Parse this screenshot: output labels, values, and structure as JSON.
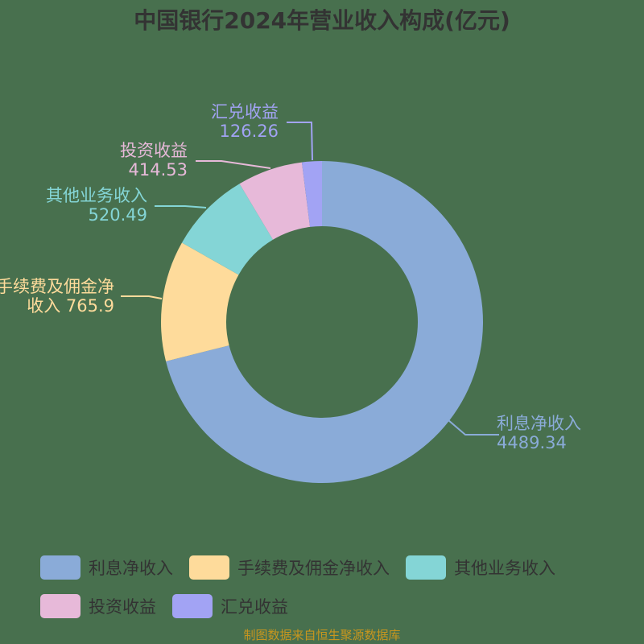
{
  "title": "中国银行2024年营业收入构成(亿元)",
  "source": "制图数据来自恒生聚源数据库",
  "chart_data": {
    "type": "pie",
    "variant": "donut",
    "title": "中国银行2024年营业收入构成(亿元)",
    "unit": "亿元",
    "categories": [
      "利息净收入",
      "手续费及佣金净收入",
      "其他业务收入",
      "投资收益",
      "汇兑收益"
    ],
    "values": [
      4489.34,
      765.9,
      520.49,
      414.53,
      126.26
    ],
    "colors": [
      "#8aabd8",
      "#fedb9b",
      "#84d5d6",
      "#e7b9d9",
      "#a2a3f4"
    ],
    "data_labels": [
      "利息净收入\n4489.34",
      "手续费及佣金净收入 765.9",
      "其他业务收入\n520.49",
      "投资收益\n414.53",
      "汇兑收益\n126.26"
    ],
    "legend_position": "bottom",
    "start_angle": "12 o'clock, clockwise"
  },
  "labels": {
    "interest": {
      "name": "利息净收入",
      "value": "4489.34"
    },
    "fee_line1": "手续费及佣金净",
    "fee_line2": "收入 765.9",
    "other": {
      "name": "其他业务收入",
      "value": "520.49"
    },
    "invest": {
      "name": "投资收益",
      "value": "414.53"
    },
    "fx": {
      "name": "汇兑收益",
      "value": "126.26"
    }
  },
  "legend": [
    {
      "label": "利息净收入",
      "color": "#8aabd8"
    },
    {
      "label": "手续费及佣金净收入",
      "color": "#fedb9b"
    },
    {
      "label": "其他业务收入",
      "color": "#84d5d6"
    },
    {
      "label": "投资收益",
      "color": "#e7b9d9"
    },
    {
      "label": "汇兑收益",
      "color": "#a2a3f4"
    }
  ]
}
